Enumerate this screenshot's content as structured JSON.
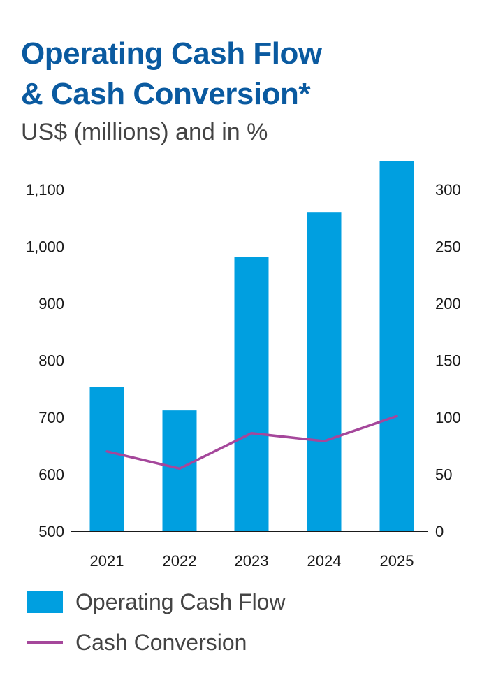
{
  "chart_data": {
    "type": "bar",
    "title_line1": "Operating Cash Flow",
    "title_line2": "& Cash Conversion",
    "title_mark": "*",
    "subtitle": "US$ (millions) and in %",
    "categories": [
      "2021",
      "2022",
      "2023",
      "2024",
      "2025"
    ],
    "series": [
      {
        "name": "Operating Cash Flow",
        "type": "bar",
        "axis": "left",
        "values": [
          753,
          712,
          981,
          1059,
          1156
        ]
      },
      {
        "name": "Cash Conversion",
        "type": "line",
        "axis": "right",
        "values": [
          70,
          55,
          86,
          79,
          101
        ]
      }
    ],
    "left_axis": {
      "ylim": [
        500,
        1150
      ],
      "ticks": [
        "500",
        "600",
        "700",
        "800",
        "900",
        "1,000",
        "1,100"
      ]
    },
    "right_axis": {
      "ylim": [
        0,
        325
      ],
      "ticks": [
        "0",
        "50",
        "100",
        "150",
        "200",
        "250",
        "300"
      ]
    },
    "colors": {
      "bar": "#009fe0",
      "line": "#a5479b",
      "title": "#0a5aa0",
      "axis": "#1a1a1a"
    }
  }
}
